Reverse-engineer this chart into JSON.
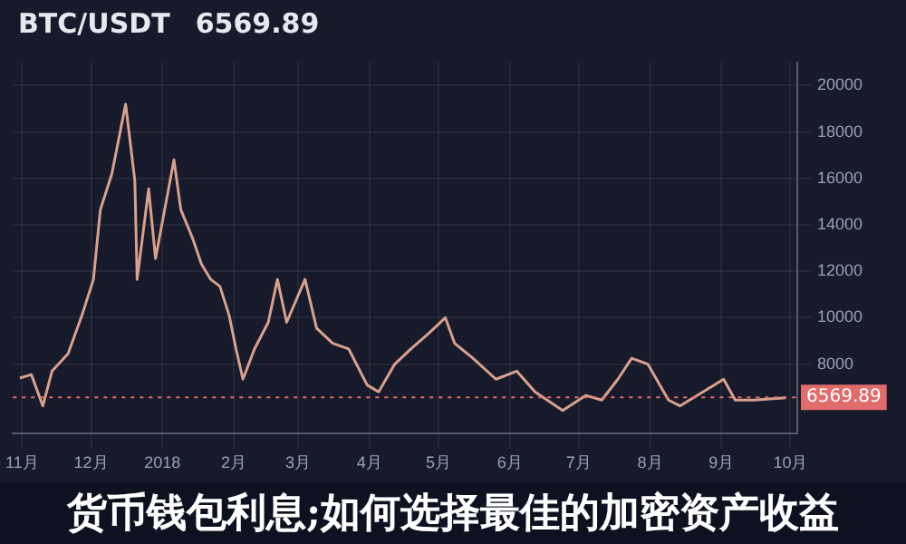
{
  "chart_data": {
    "type": "line",
    "title": "BTC/USDT",
    "subtitle": "6569.89",
    "annotations": [
      "货币钱包利息;如何选择最佳的加密资产收益"
    ],
    "x": [
      "2017-10-31",
      "2017-11-05",
      "2017-11-10",
      "2017-11-14",
      "2017-11-21",
      "2017-11-27",
      "2017-12-02",
      "2017-12-05",
      "2017-12-10",
      "2017-12-16",
      "2017-12-20",
      "2017-12-21",
      "2017-12-26",
      "2017-12-29",
      "2018-01-06",
      "2018-01-09",
      "2018-01-14",
      "2018-01-18",
      "2018-01-22",
      "2018-01-26",
      "2018-01-30",
      "2018-02-02",
      "2018-02-05",
      "2018-02-10",
      "2018-02-16",
      "2018-02-20",
      "2018-02-24",
      "2018-03-04",
      "2018-03-09",
      "2018-03-16",
      "2018-03-23",
      "2018-03-31",
      "2018-04-05",
      "2018-04-12",
      "2018-04-19",
      "2018-04-27",
      "2018-05-04",
      "2018-05-08",
      "2018-05-16",
      "2018-05-26",
      "2018-06-04",
      "2018-06-12",
      "2018-06-24",
      "2018-07-04",
      "2018-07-11",
      "2018-07-18",
      "2018-07-24",
      "2018-07-31",
      "2018-08-09",
      "2018-08-14",
      "2018-08-24",
      "2018-09-02",
      "2018-09-07",
      "2018-09-15",
      "2018-09-29"
    ],
    "series": [
      {
        "color": "#d9a08c",
        "values": [
          7400,
          7550,
          6200,
          7700,
          8450,
          10100,
          11650,
          14650,
          16200,
          19200,
          15900,
          11650,
          15550,
          12550,
          16800,
          14650,
          13450,
          12300,
          11650,
          11350,
          10100,
          8650,
          7350,
          8650,
          9800,
          11650,
          9800,
          11650,
          9550,
          8900,
          8650,
          7100,
          6800,
          8000,
          8650,
          9350,
          10000,
          8900,
          8250,
          7350,
          7700,
          6800,
          6000,
          6650,
          6450,
          7350,
          8250,
          8000,
          6450,
          6200,
          6800,
          7350,
          6450,
          6450,
          6550
        ]
      }
    ],
    "xlim": [
      "2017-10-28",
      "2018-10-04"
    ],
    "xticks": [
      {
        "value": "2017-11-01",
        "label": "11月"
      },
      {
        "value": "2017-12-01",
        "label": "12月"
      },
      {
        "value": "2018-01-01",
        "label": "2018"
      },
      {
        "value": "2018-02-01",
        "label": "2月"
      },
      {
        "value": "2018-03-01",
        "label": "3月"
      },
      {
        "value": "2018-04-01",
        "label": "4月"
      },
      {
        "value": "2018-05-01",
        "label": "5月"
      },
      {
        "value": "2018-06-01",
        "label": "6月"
      },
      {
        "value": "2018-07-01",
        "label": "7月"
      },
      {
        "value": "2018-08-01",
        "label": "8月"
      },
      {
        "value": "2018-09-01",
        "label": "9月"
      },
      {
        "value": "2018-10-01",
        "label": "10月"
      }
    ],
    "ylim": [
      5000,
      21000
    ],
    "yticks": [
      8000,
      10000,
      12000,
      14000,
      16000,
      18000,
      20000
    ],
    "ref_lines": [
      {
        "axis": "y",
        "value": 6569.89,
        "label": "6569.89",
        "color": "#e06c6c",
        "line_style": "dotted"
      }
    ],
    "grid": true,
    "legend": false,
    "marker": "none",
    "line_style": "solid"
  }
}
